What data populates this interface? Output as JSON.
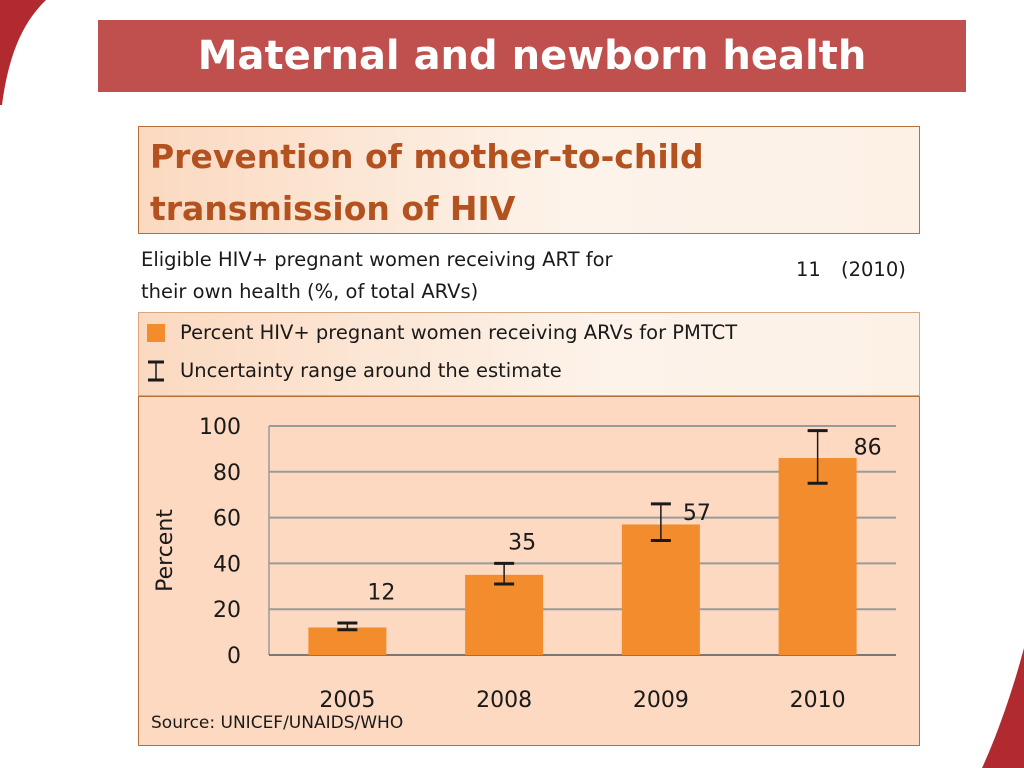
{
  "slide": {
    "title": "Maternal and newborn health",
    "colors": {
      "title_bar": "#c0504d",
      "accent_decoration": "#b02a2f"
    }
  },
  "panel": {
    "header_line1": "Prevention of mother-to-child",
    "header_line2": "transmission of HIV",
    "indicator": {
      "label_line1": "Eligible HIV+ pregnant women receiving ART for",
      "label_line2": "their own health (%, of total ARVs)",
      "value": "11",
      "year": "(2010)"
    },
    "legend": {
      "bar_label": "Percent HIV+ pregnant women receiving ARVs for PMTCT",
      "error_label": "Uncertainty range around the estimate"
    },
    "source": "Source: UNICEF/UNAIDS/WHO",
    "colors": {
      "header_text": "#b3511f",
      "bar": "#f28c2c",
      "chart_bg": "#fcd9c0",
      "grid": "#9a9a9a"
    }
  },
  "chart_data": {
    "type": "bar",
    "categories": [
      "2005",
      "2008",
      "2009",
      "2010"
    ],
    "values": [
      12,
      35,
      57,
      86
    ],
    "data_labels": [
      "12",
      "35",
      "57",
      "86"
    ],
    "error_low": [
      11,
      31,
      50,
      75
    ],
    "error_high": [
      14,
      40,
      66,
      98
    ],
    "ylabel": "Percent",
    "ylim": [
      0,
      100
    ],
    "yticks": [
      0,
      20,
      40,
      60,
      80,
      100
    ],
    "grid": true
  }
}
